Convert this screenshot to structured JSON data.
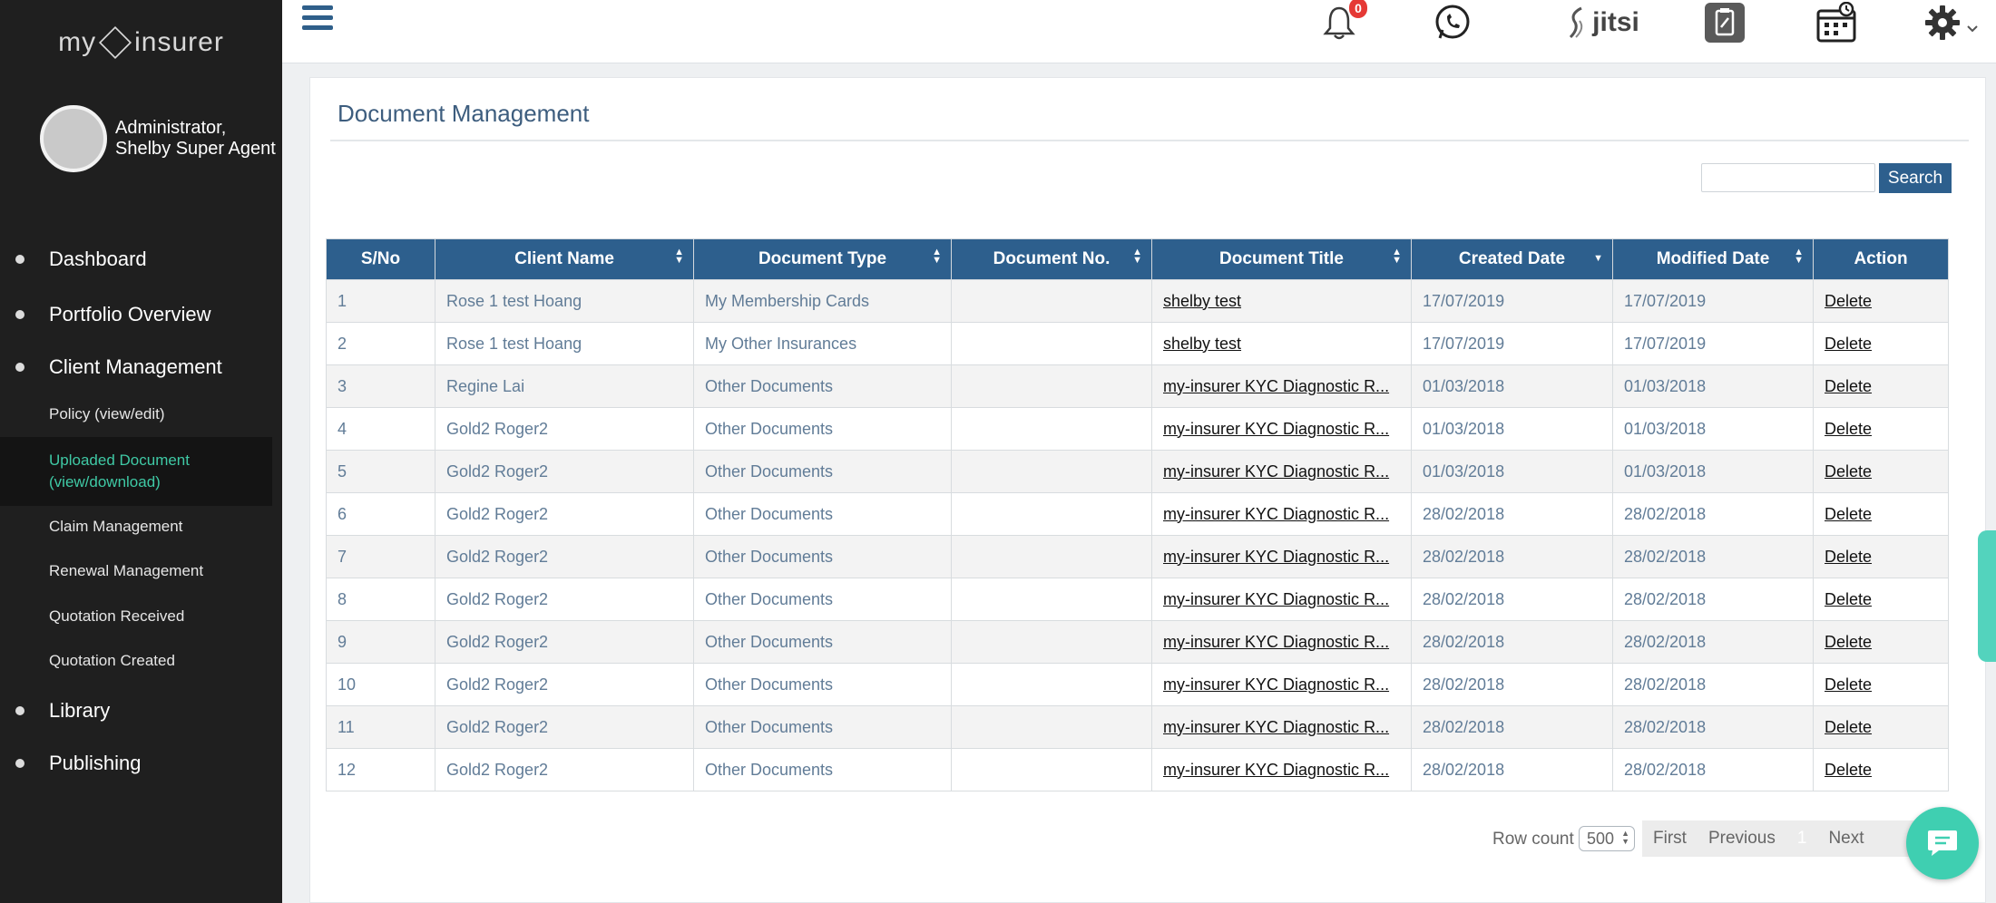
{
  "brand": {
    "left": "my",
    "right": "insurer"
  },
  "user": {
    "name": "Administrator, Shelby Super Agent"
  },
  "nav": {
    "dashboard": "Dashboard",
    "portfolio": "Portfolio Overview",
    "client_management": "Client Management",
    "policy": "Policy (view/edit)",
    "uploaded_document": "Uploaded Document (view/download)",
    "claim": "Claim Management",
    "renewal": "Renewal Management",
    "quotation_received": "Quotation Received",
    "quotation_created": "Quotation Created",
    "library": "Library",
    "publishing": "Publishing"
  },
  "topbar": {
    "notification_count": "0",
    "jitsi_label": "jitsi",
    "icons": [
      "menu-icon",
      "bell-icon",
      "whatsapp-icon",
      "jitsi-icon",
      "clipboard-icon",
      "calendar-clock-icon",
      "gear-icon",
      "chevron-down-icon"
    ]
  },
  "page": {
    "title": "Document Management"
  },
  "search": {
    "value": "",
    "button_label": "Search"
  },
  "table": {
    "headers": {
      "sno": "S/No",
      "client": "Client Name",
      "doctype": "Document Type",
      "docno": "Document No.",
      "title": "Document Title",
      "created": "Created Date",
      "modified": "Modified Date",
      "action": "Action"
    },
    "rows": [
      {
        "sno": "1",
        "client": "Rose 1 test Hoang",
        "doctype": "My Membership Cards",
        "docno": "",
        "title": "shelby test",
        "created": "17/07/2019",
        "modified": "17/07/2019",
        "action": "Delete"
      },
      {
        "sno": "2",
        "client": "Rose 1 test Hoang",
        "doctype": "My Other Insurances",
        "docno": "",
        "title": "shelby test",
        "created": "17/07/2019",
        "modified": "17/07/2019",
        "action": "Delete"
      },
      {
        "sno": "3",
        "client": "Regine Lai",
        "doctype": "Other Documents",
        "docno": "",
        "title": "my-insurer KYC Diagnostic R...",
        "created": "01/03/2018",
        "modified": "01/03/2018",
        "action": "Delete"
      },
      {
        "sno": "4",
        "client": "Gold2 Roger2",
        "doctype": "Other Documents",
        "docno": "",
        "title": "my-insurer KYC Diagnostic R...",
        "created": "01/03/2018",
        "modified": "01/03/2018",
        "action": "Delete"
      },
      {
        "sno": "5",
        "client": "Gold2 Roger2",
        "doctype": "Other Documents",
        "docno": "",
        "title": "my-insurer KYC Diagnostic R...",
        "created": "01/03/2018",
        "modified": "01/03/2018",
        "action": "Delete"
      },
      {
        "sno": "6",
        "client": "Gold2 Roger2",
        "doctype": "Other Documents",
        "docno": "",
        "title": "my-insurer KYC Diagnostic R...",
        "created": "28/02/2018",
        "modified": "28/02/2018",
        "action": "Delete"
      },
      {
        "sno": "7",
        "client": "Gold2 Roger2",
        "doctype": "Other Documents",
        "docno": "",
        "title": "my-insurer KYC Diagnostic R...",
        "created": "28/02/2018",
        "modified": "28/02/2018",
        "action": "Delete"
      },
      {
        "sno": "8",
        "client": "Gold2 Roger2",
        "doctype": "Other Documents",
        "docno": "",
        "title": "my-insurer KYC Diagnostic R...",
        "created": "28/02/2018",
        "modified": "28/02/2018",
        "action": "Delete"
      },
      {
        "sno": "9",
        "client": "Gold2 Roger2",
        "doctype": "Other Documents",
        "docno": "",
        "title": "my-insurer KYC Diagnostic R...",
        "created": "28/02/2018",
        "modified": "28/02/2018",
        "action": "Delete"
      },
      {
        "sno": "10",
        "client": "Gold2 Roger2",
        "doctype": "Other Documents",
        "docno": "",
        "title": "my-insurer KYC Diagnostic R...",
        "created": "28/02/2018",
        "modified": "28/02/2018",
        "action": "Delete"
      },
      {
        "sno": "11",
        "client": "Gold2 Roger2",
        "doctype": "Other Documents",
        "docno": "",
        "title": "my-insurer KYC Diagnostic R...",
        "created": "28/02/2018",
        "modified": "28/02/2018",
        "action": "Delete"
      },
      {
        "sno": "12",
        "client": "Gold2 Roger2",
        "doctype": "Other Documents",
        "docno": "",
        "title": "my-insurer KYC Diagnostic R...",
        "created": "28/02/2018",
        "modified": "28/02/2018",
        "action": "Delete"
      }
    ]
  },
  "pagination": {
    "row_count_label": "Row count",
    "row_count_value": "500",
    "first": "First",
    "previous": "Previous",
    "current_page": "1",
    "next": "Next"
  },
  "colors": {
    "sidebar_bg": "#1f1f1f",
    "header_blue": "#2d5f8d",
    "accent_teal": "#3fcfb1",
    "active_nav_text": "#3fc9a5"
  }
}
